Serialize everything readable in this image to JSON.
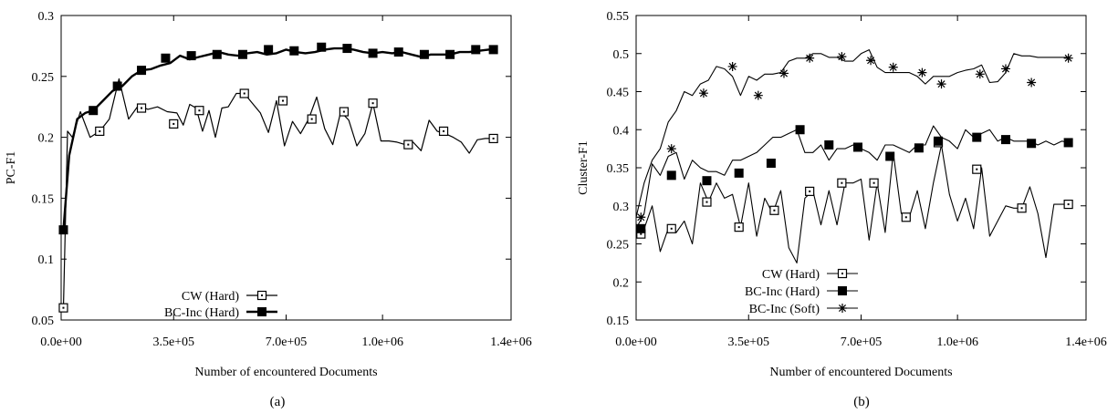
{
  "chart_data": [
    {
      "type": "line",
      "caption": "(a)",
      "xlabel": "Number of encountered Documents",
      "ylabel": "PC-F1",
      "xlim": [
        0,
        1400000
      ],
      "ylim": [
        0.05,
        0.3
      ],
      "xticks": [
        0,
        350000,
        700000,
        1000000,
        1400000
      ],
      "xtick_labels": [
        "0.0e+00",
        "3.5e+05",
        "7.0e+05",
        "1.0e+06",
        "1.4e+06"
      ],
      "yticks": [
        0.05,
        0.1,
        0.15,
        0.2,
        0.25,
        0.3
      ],
      "ytick_labels": [
        "0.05",
        "0.1",
        "0.15",
        "0.2",
        "0.25",
        "0.3"
      ],
      "legend_position": "bottom-left",
      "series": [
        {
          "name": "CW (Hard)",
          "marker": "open-square",
          "stroke_width": 1.2,
          "x": [
            0,
            7000,
            20000,
            35000,
            60000,
            90000,
            120000,
            150000,
            180000,
            210000,
            240000,
            270000,
            300000,
            330000,
            360000,
            380000,
            400000,
            420000,
            440000,
            460000,
            480000,
            500000,
            520000,
            545000,
            570000,
            595000,
            620000,
            645000,
            670000,
            695000,
            720000,
            745000,
            770000,
            795000,
            820000,
            845000,
            870000,
            895000,
            920000,
            945000,
            970000,
            995000,
            1020000,
            1045000,
            1070000,
            1095000,
            1120000,
            1145000,
            1170000,
            1195000,
            1220000,
            1245000,
            1270000,
            1295000,
            1320000,
            1345000
          ],
          "y": [
            0.06,
            0.06,
            0.205,
            0.2,
            0.221,
            0.2,
            0.205,
            0.215,
            0.248,
            0.215,
            0.226,
            0.223,
            0.225,
            0.221,
            0.22,
            0.21,
            0.227,
            0.224,
            0.205,
            0.222,
            0.2,
            0.224,
            0.225,
            0.236,
            0.236,
            0.228,
            0.22,
            0.204,
            0.23,
            0.193,
            0.213,
            0.203,
            0.215,
            0.233,
            0.207,
            0.194,
            0.221,
            0.214,
            0.193,
            0.203,
            0.228,
            0.197,
            0.197,
            0.196,
            0.194,
            0.196,
            0.189,
            0.214,
            0.205,
            0.203,
            0.2,
            0.196,
            0.187,
            0.198,
            0.199,
            0.199
          ],
          "marker_x": [
            7000,
            120000,
            250000,
            350000,
            430000,
            570000,
            690000,
            780000,
            880000,
            970000,
            1080000,
            1190000,
            1345000
          ],
          "marker_y": [
            0.06,
            0.205,
            0.224,
            0.211,
            0.222,
            0.236,
            0.23,
            0.215,
            0.221,
            0.228,
            0.194,
            0.205,
            0.199
          ]
        },
        {
          "name": "BC-Inc (Hard)",
          "marker": "filled-square",
          "stroke_width": 2.4,
          "x": [
            0,
            7000,
            25000,
            50000,
            75000,
            100000,
            130000,
            160000,
            190000,
            220000,
            250000,
            280000,
            310000,
            340000,
            370000,
            400000,
            430000,
            460000,
            490000,
            520000,
            550000,
            580000,
            610000,
            640000,
            670000,
            700000,
            730000,
            760000,
            790000,
            820000,
            850000,
            880000,
            910000,
            940000,
            970000,
            1000000,
            1030000,
            1060000,
            1090000,
            1120000,
            1150000,
            1180000,
            1210000,
            1240000,
            1270000,
            1300000,
            1330000,
            1345000
          ],
          "y": [
            0.124,
            0.124,
            0.185,
            0.215,
            0.22,
            0.222,
            0.23,
            0.238,
            0.242,
            0.25,
            0.255,
            0.256,
            0.259,
            0.261,
            0.267,
            0.264,
            0.266,
            0.268,
            0.27,
            0.268,
            0.267,
            0.269,
            0.27,
            0.268,
            0.269,
            0.272,
            0.27,
            0.269,
            0.27,
            0.272,
            0.273,
            0.273,
            0.272,
            0.27,
            0.269,
            0.27,
            0.269,
            0.27,
            0.268,
            0.266,
            0.268,
            0.268,
            0.268,
            0.27,
            0.27,
            0.271,
            0.272,
            0.272
          ],
          "marker_x": [
            7000,
            100000,
            175000,
            250000,
            325000,
            405000,
            485000,
            565000,
            645000,
            725000,
            810000,
            890000,
            970000,
            1050000,
            1130000,
            1210000,
            1290000,
            1345000
          ],
          "marker_y": [
            0.124,
            0.222,
            0.242,
            0.255,
            0.265,
            0.267,
            0.268,
            0.268,
            0.272,
            0.271,
            0.274,
            0.273,
            0.269,
            0.27,
            0.268,
            0.268,
            0.272,
            0.272
          ]
        }
      ]
    },
    {
      "type": "line",
      "caption": "(b)",
      "xlabel": "Number of encountered Documents",
      "ylabel": "Cluster-F1",
      "xlim": [
        0,
        1400000
      ],
      "ylim": [
        0.15,
        0.55
      ],
      "xticks": [
        0,
        350000,
        700000,
        1000000,
        1400000
      ],
      "xtick_labels": [
        "0.0e+00",
        "3.5e+05",
        "7.0e+05",
        "1.0e+06",
        "1.4e+06"
      ],
      "yticks": [
        0.15,
        0.2,
        0.25,
        0.3,
        0.35,
        0.4,
        0.45,
        0.5,
        0.55
      ],
      "ytick_labels": [
        "0.15",
        "0.2",
        "0.25",
        "0.3",
        "0.35",
        "0.4",
        "0.45",
        "0.5",
        "0.55"
      ],
      "legend_position": "bottom-right",
      "series": [
        {
          "name": "CW (Hard)",
          "marker": "open-square",
          "stroke_width": 1.1,
          "x": [
            0,
            25000,
            50000,
            75000,
            100000,
            125000,
            150000,
            175000,
            200000,
            225000,
            250000,
            275000,
            300000,
            325000,
            350000,
            375000,
            400000,
            425000,
            450000,
            475000,
            500000,
            525000,
            550000,
            575000,
            600000,
            625000,
            650000,
            675000,
            700000,
            725000,
            750000,
            775000,
            800000,
            825000,
            850000,
            875000,
            900000,
            925000,
            950000,
            975000,
            1000000,
            1025000,
            1050000,
            1075000,
            1100000,
            1125000,
            1150000,
            1175000,
            1200000,
            1225000,
            1250000,
            1275000,
            1300000,
            1325000,
            1345000
          ],
          "y": [
            0.263,
            0.27,
            0.3,
            0.24,
            0.27,
            0.265,
            0.28,
            0.25,
            0.33,
            0.305,
            0.33,
            0.31,
            0.315,
            0.272,
            0.33,
            0.26,
            0.31,
            0.29,
            0.32,
            0.245,
            0.225,
            0.31,
            0.32,
            0.275,
            0.32,
            0.275,
            0.33,
            0.33,
            0.335,
            0.255,
            0.33,
            0.265,
            0.37,
            0.29,
            0.285,
            0.32,
            0.27,
            0.33,
            0.38,
            0.315,
            0.28,
            0.31,
            0.27,
            0.35,
            0.26,
            0.28,
            0.3,
            0.297,
            0.297,
            0.325,
            0.29,
            0.232,
            0.302,
            0.302,
            0.302
          ],
          "marker_x": [
            15000,
            110000,
            220000,
            320000,
            430000,
            540000,
            640000,
            740000,
            840000,
            940000,
            1060000,
            1200000,
            1345000
          ],
          "marker_y": [
            0.263,
            0.27,
            0.305,
            0.272,
            0.294,
            0.319,
            0.33,
            0.33,
            0.285,
            0.383,
            0.348,
            0.297,
            0.302
          ]
        },
        {
          "name": "BC-Inc (Hard)",
          "marker": "filled-square",
          "stroke_width": 1.1,
          "x": [
            0,
            25000,
            50000,
            75000,
            100000,
            125000,
            150000,
            175000,
            200000,
            225000,
            250000,
            275000,
            300000,
            325000,
            350000,
            375000,
            400000,
            425000,
            450000,
            475000,
            500000,
            525000,
            550000,
            575000,
            600000,
            625000,
            650000,
            675000,
            700000,
            725000,
            750000,
            775000,
            800000,
            825000,
            850000,
            875000,
            900000,
            925000,
            950000,
            975000,
            1000000,
            1025000,
            1050000,
            1075000,
            1100000,
            1125000,
            1150000,
            1175000,
            1200000,
            1225000,
            1250000,
            1275000,
            1300000,
            1325000,
            1345000
          ],
          "y": [
            0.27,
            0.29,
            0.355,
            0.34,
            0.365,
            0.37,
            0.335,
            0.36,
            0.35,
            0.345,
            0.345,
            0.34,
            0.36,
            0.36,
            0.365,
            0.37,
            0.38,
            0.39,
            0.39,
            0.395,
            0.4,
            0.37,
            0.37,
            0.38,
            0.36,
            0.375,
            0.375,
            0.38,
            0.375,
            0.37,
            0.36,
            0.38,
            0.38,
            0.375,
            0.37,
            0.38,
            0.38,
            0.405,
            0.39,
            0.385,
            0.375,
            0.4,
            0.39,
            0.395,
            0.4,
            0.385,
            0.39,
            0.385,
            0.385,
            0.385,
            0.38,
            0.385,
            0.38,
            0.385,
            0.383
          ],
          "marker_x": [
            15000,
            110000,
            220000,
            320000,
            420000,
            510000,
            600000,
            690000,
            790000,
            880000,
            940000,
            1060000,
            1150000,
            1230000,
            1345000
          ],
          "marker_y": [
            0.27,
            0.34,
            0.333,
            0.343,
            0.356,
            0.4,
            0.38,
            0.377,
            0.365,
            0.376,
            0.385,
            0.39,
            0.387,
            0.382,
            0.383
          ]
        },
        {
          "name": "BC-Inc (Soft)",
          "marker": "asterisk",
          "stroke_width": 1.1,
          "x": [
            0,
            25000,
            50000,
            75000,
            100000,
            125000,
            150000,
            175000,
            200000,
            225000,
            250000,
            275000,
            300000,
            325000,
            350000,
            375000,
            400000,
            425000,
            450000,
            475000,
            500000,
            525000,
            550000,
            575000,
            600000,
            625000,
            650000,
            675000,
            700000,
            725000,
            750000,
            775000,
            800000,
            825000,
            850000,
            875000,
            900000,
            925000,
            950000,
            975000,
            1000000,
            1025000,
            1050000,
            1075000,
            1100000,
            1125000,
            1150000,
            1175000,
            1200000,
            1225000,
            1250000,
            1275000,
            1300000,
            1325000,
            1345000
          ],
          "y": [
            0.285,
            0.33,
            0.36,
            0.375,
            0.41,
            0.425,
            0.45,
            0.445,
            0.46,
            0.465,
            0.483,
            0.48,
            0.47,
            0.445,
            0.47,
            0.465,
            0.473,
            0.473,
            0.475,
            0.49,
            0.494,
            0.494,
            0.5,
            0.5,
            0.495,
            0.495,
            0.49,
            0.49,
            0.5,
            0.505,
            0.482,
            0.475,
            0.475,
            0.475,
            0.475,
            0.47,
            0.46,
            0.47,
            0.47,
            0.47,
            0.475,
            0.478,
            0.48,
            0.485,
            0.462,
            0.463,
            0.475,
            0.5,
            0.497,
            0.497,
            0.495,
            0.495,
            0.495,
            0.495,
            0.495
          ],
          "marker_x": [
            15000,
            110000,
            210000,
            300000,
            380000,
            460000,
            540000,
            640000,
            730000,
            800000,
            890000,
            950000,
            1070000,
            1150000,
            1230000,
            1345000
          ],
          "marker_y": [
            0.285,
            0.375,
            0.448,
            0.483,
            0.445,
            0.474,
            0.494,
            0.496,
            0.491,
            0.482,
            0.475,
            0.46,
            0.473,
            0.48,
            0.462,
            0.494
          ]
        }
      ]
    }
  ]
}
